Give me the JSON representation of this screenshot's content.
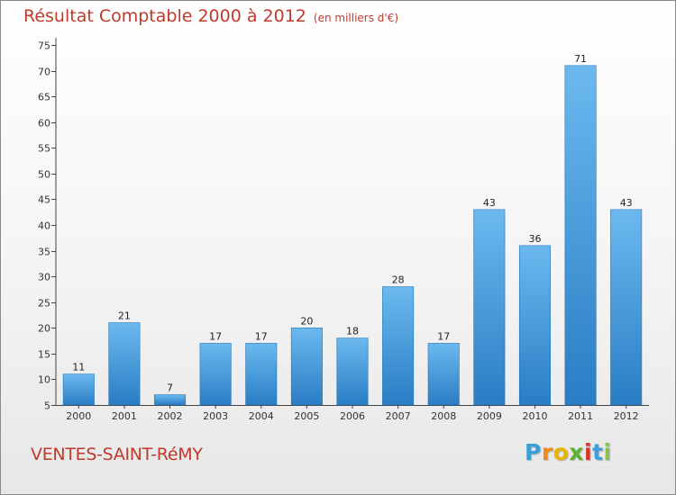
{
  "header": {
    "title": "Résultat Comptable 2000 à 2012",
    "unit": "(en milliers d'€)"
  },
  "footer": {
    "commune": "VENTES-SAINT-RéMY",
    "logo_letters": [
      "P",
      "r",
      "o",
      "x",
      "i",
      "t",
      "i"
    ],
    "logo_colors": [
      "#3aa0d8",
      "#f08a1c",
      "#e8b400",
      "#5ab030",
      "#d8352a",
      "#3aa0d8",
      "#8bc34a"
    ]
  },
  "colors": {
    "bar_top": "#6bb9ef",
    "bar_bottom": "#2a7dc4",
    "bar_edge": "#2574b5",
    "axis": "#444444",
    "title": "#c0392b"
  },
  "chart_data": {
    "type": "bar",
    "categories": [
      "2000",
      "2001",
      "2002",
      "2003",
      "2004",
      "2005",
      "2006",
      "2007",
      "2008",
      "2009",
      "2010",
      "2011",
      "2012"
    ],
    "values": [
      11,
      21,
      7,
      17,
      17,
      20,
      18,
      28,
      17,
      43,
      36,
      71,
      43
    ],
    "ylim": [
      5,
      75
    ],
    "yticks": [
      5,
      10,
      15,
      20,
      25,
      30,
      35,
      40,
      45,
      50,
      55,
      60,
      65,
      70,
      75
    ],
    "grid": false,
    "data_labels": true
  }
}
